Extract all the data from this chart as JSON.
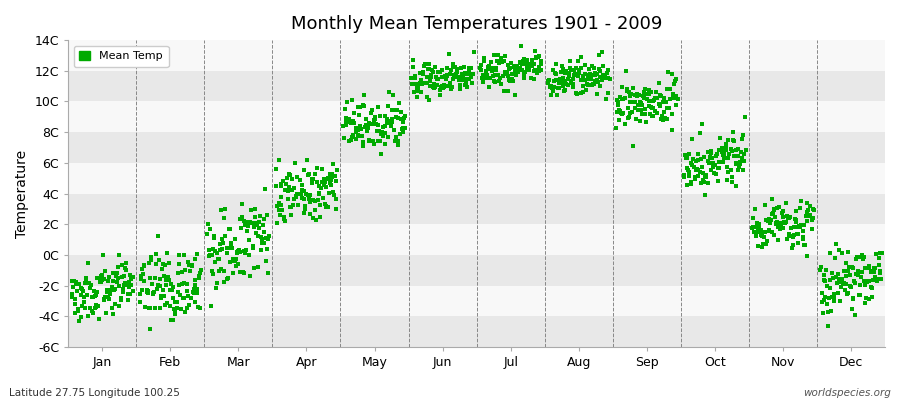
{
  "title": "Monthly Mean Temperatures 1901 - 2009",
  "ylabel": "Temperature",
  "bottom_left": "Latitude 27.75 Longitude 100.25",
  "bottom_right": "worldspecies.org",
  "legend_label": "Mean Temp",
  "background_color": "#ffffff",
  "plot_bg_color": "#f0f0f0",
  "stripe_light": "#f8f8f8",
  "stripe_dark": "#e8e8e8",
  "marker_color": "#00aa00",
  "ylim": [
    -6,
    14
  ],
  "yticks": [
    -6,
    -4,
    -2,
    0,
    2,
    4,
    6,
    8,
    10,
    12,
    14
  ],
  "ytick_labels": [
    "-6C",
    "-4C",
    "-2C",
    "0C",
    "2C",
    "4C",
    "6C",
    "8C",
    "10C",
    "12C",
    "14C"
  ],
  "month_means": [
    -2.5,
    -2.0,
    0.5,
    4.0,
    8.5,
    11.5,
    12.0,
    11.5,
    10.0,
    6.0,
    2.0,
    -1.5
  ],
  "month_stds": [
    0.9,
    1.1,
    1.2,
    1.0,
    0.8,
    0.6,
    0.6,
    0.6,
    0.8,
    0.9,
    0.8,
    1.0
  ],
  "month_trends": [
    0.008,
    0.008,
    0.01,
    0.008,
    0.006,
    0.004,
    0.003,
    0.003,
    0.004,
    0.006,
    0.007,
    0.008
  ],
  "n_years": 109,
  "seed": 42
}
